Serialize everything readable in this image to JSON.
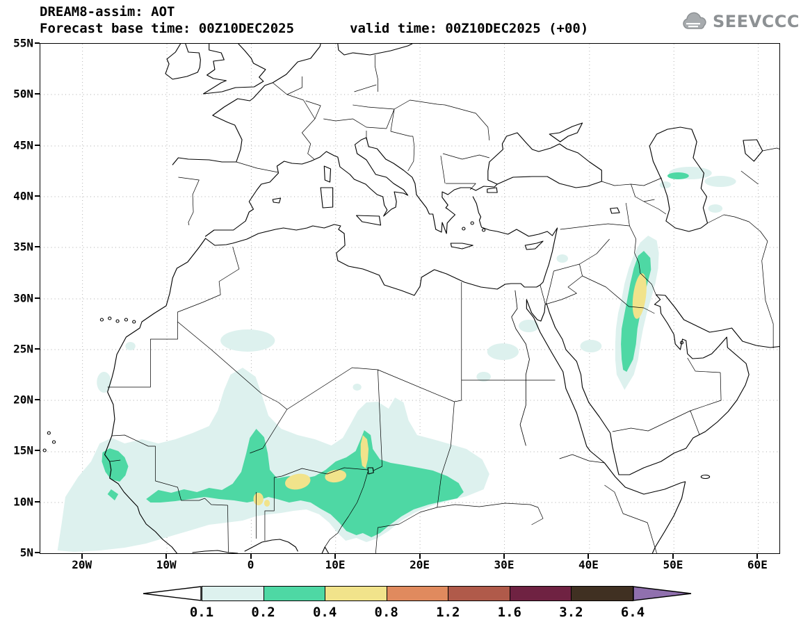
{
  "header": {
    "title": "DREAM8-assim: AOT",
    "subtitle": "Forecast base time: 00Z10DEC2025       valid time: 00Z10DEC2025 (+00)",
    "logo_text": "SEEVCCC"
  },
  "map": {
    "y_ticks": [
      "55N",
      "50N",
      "45N",
      "40N",
      "35N",
      "30N",
      "25N",
      "20N",
      "15N",
      "10N",
      "5N"
    ],
    "x_ticks": [
      "20W",
      "10W",
      "0",
      "10E",
      "20E",
      "30E",
      "40E",
      "50E",
      "60E"
    ]
  },
  "colorbar": {
    "labels": [
      "0.1",
      "0.2",
      "0.4",
      "0.8",
      "1.2",
      "1.6",
      "3.2",
      "6.4"
    ],
    "colors": [
      "#ddf1ee",
      "#4ed8a4",
      "#f1e38b",
      "#e08a5e",
      "#b05a4a",
      "#6f2242",
      "#403022"
    ],
    "left_arrow_color": "#ffffff",
    "right_arrow_color": "#9070ae"
  },
  "chart_data": {
    "type": "heatmap",
    "title": "DREAM8-assim: AOT",
    "model": "DREAM8-assim",
    "variable": "AOT (aerosol optical thickness)",
    "forecast_base_time": "00Z10DEC2025",
    "valid_time": "00Z10DEC2025 (+00)",
    "lat_axis_ticks": [
      "55N",
      "50N",
      "45N",
      "40N",
      "35N",
      "30N",
      "25N",
      "20N",
      "15N",
      "10N",
      "5N"
    ],
    "lon_axis_ticks": [
      "20W",
      "10W",
      "0",
      "10E",
      "20E",
      "30E",
      "40E",
      "50E",
      "60E"
    ],
    "lat_range_deg": [
      5,
      55
    ],
    "lon_range_deg": [
      -25,
      62.5
    ],
    "contour_levels": [
      0.1,
      0.2,
      0.4,
      0.8,
      1.2,
      1.6,
      3.2,
      6.4
    ],
    "level_colors": [
      "#ddf1ee",
      "#4ed8a4",
      "#f1e38b",
      "#e08a5e",
      "#b05a4a",
      "#6f2242",
      "#403022"
    ],
    "below_min_color": "#ffffff",
    "above_max_color": "#9070ae",
    "legend_position": "bottom",
    "grid": "dotted, 10 deg lon x 5 deg lat",
    "features": [
      {
        "region": "Sahel / West Africa band (20W-27E, 5N-23N)",
        "max_level": "0.4-0.8",
        "notes": "yellow cores near 0E/10N, 5E/12N, 10E/12N and an elongated core at 13E/13-16N"
      },
      {
        "region": "Senegal coast (17W, 11-15N)",
        "max_level": "0.2-0.4"
      },
      {
        "region": "Mesopotamia / Persian Gulf plume (43-48E, 21-36N)",
        "max_level": "0.4-0.8",
        "notes": "yellow core near 46E between 28N and 32N"
      },
      {
        "region": "Caspian Sea vicinity (48-56E, 37-43N)",
        "max_level": "0.2-0.4"
      },
      {
        "region": "Egypt / NE Africa patches (27-34E, 22-28N)",
        "max_level": "0.1-0.2"
      },
      {
        "region": "Central Saudi Arabia patch (40E, 25N)",
        "max_level": "0.1-0.2"
      },
      {
        "region": "NW Sahara patch (4W-3E, 25-28N)",
        "max_level": "0.1-0.2"
      }
    ]
  }
}
